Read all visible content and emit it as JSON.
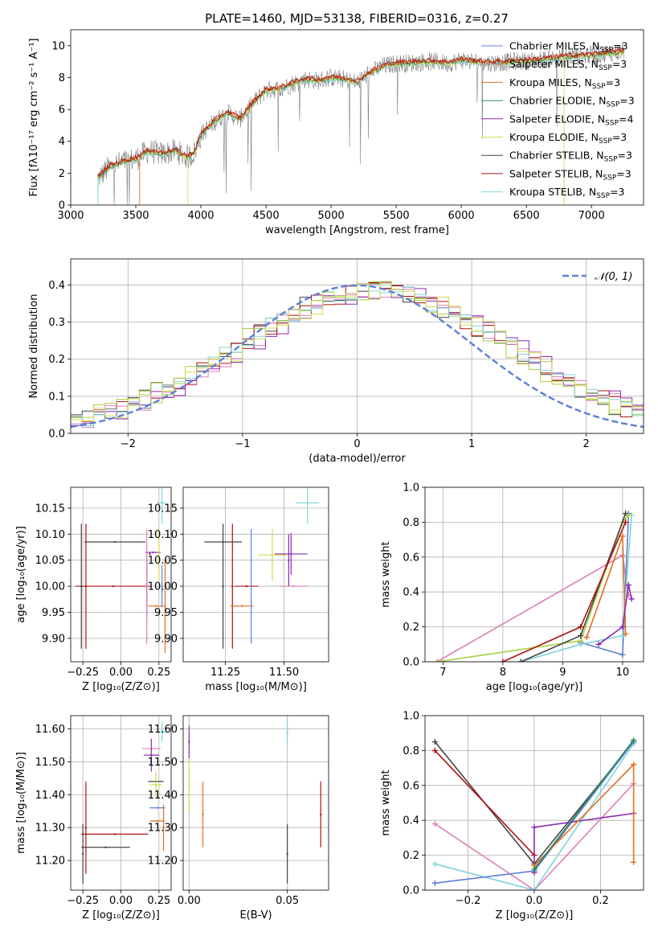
{
  "figure": {
    "title": "PLATE=1460, MJD=53138, FIBERID=0316, z=0.27"
  },
  "colors": {
    "chabrier_miles": "#5b7fd6",
    "salpeter_miles": "#e07fb6",
    "kroupa_miles": "#e07020",
    "chabrier_elodie": "#2e8b57",
    "salpeter_elodie": "#8b2bb0",
    "kroupa_elodie": "#d4dc50",
    "chabrier_stelib": "#444444",
    "salpeter_stelib": "#b01010",
    "kroupa_stelib": "#7fd4dc",
    "data": "#808080",
    "gaussian": "#5b7fd6",
    "lime": "#a8d040"
  },
  "chart_data": [
    {
      "id": "spectrum",
      "type": "line",
      "xlabel": "wavelength [Angstrom, rest frame]",
      "ylabel": "Flux [fλ10⁻¹⁷ erg cm⁻² s⁻¹ A⁻¹]",
      "xlim": [
        3000,
        7400
      ],
      "ylim": [
        0,
        11
      ],
      "xticks": [
        3000,
        3500,
        4000,
        4500,
        5000,
        5500,
        6000,
        6500,
        7000
      ],
      "yticks": [
        0,
        2,
        4,
        6,
        8,
        10
      ],
      "grid": false,
      "legend_position": "top-right",
      "legend": [
        {
          "label": "Chabrier MILES, N",
          "sub": "SSP",
          "tail": "=3",
          "color": "chabrier_miles"
        },
        {
          "label": "Salpeter MILES, N",
          "sub": "SSP",
          "tail": "=3",
          "color": "salpeter_miles"
        },
        {
          "label": "Kroupa MILES, N",
          "sub": "SSP",
          "tail": "=3",
          "color": "kroupa_miles"
        },
        {
          "label": "Chabrier ELODIE, N",
          "sub": "SSP",
          "tail": "=3",
          "color": "chabrier_elodie"
        },
        {
          "label": "Salpeter ELODIE, N",
          "sub": "SSP",
          "tail": "=4",
          "color": "salpeter_elodie"
        },
        {
          "label": "Kroupa ELODIE, N",
          "sub": "SSP",
          "tail": "=3",
          "color": "kroupa_elodie"
        },
        {
          "label": "Chabrier STELIB, N",
          "sub": "SSP",
          "tail": "=3",
          "color": "chabrier_stelib"
        },
        {
          "label": "Salpeter STELIB, N",
          "sub": "SSP",
          "tail": "=3",
          "color": "salpeter_stelib"
        },
        {
          "label": "Kroupa STELIB, N",
          "sub": "SSP",
          "tail": "=3",
          "color": "kroupa_stelib"
        }
      ],
      "continuum": {
        "x": [
          3210,
          3300,
          3400,
          3500,
          3600,
          3700,
          3800,
          3900,
          3950,
          4000,
          4100,
          4200,
          4300,
          4400,
          4500,
          4600,
          4700,
          4800,
          4900,
          5000,
          5100,
          5200,
          5300,
          5400,
          5500,
          5600,
          5700,
          5800,
          5900,
          6000,
          6200,
          6400,
          6600,
          6800,
          7000,
          7200
        ],
        "y": [
          1.7,
          2.4,
          2.7,
          2.9,
          3.4,
          3.2,
          3.4,
          3.0,
          3.3,
          4.4,
          5.2,
          5.8,
          5.4,
          6.4,
          7.2,
          7.3,
          7.6,
          7.9,
          7.8,
          8.0,
          7.9,
          7.7,
          8.3,
          8.7,
          8.9,
          8.9,
          9.0,
          9.0,
          8.9,
          9.1,
          8.9,
          9.0,
          9.1,
          9.3,
          9.4,
          9.6
        ]
      }
    },
    {
      "id": "residuals",
      "type": "line",
      "xlabel": "(data-model)/error",
      "ylabel": "Normed distribution",
      "xlim": [
        -2.5,
        2.5
      ],
      "ylim": [
        0,
        0.47
      ],
      "xticks": [
        -2,
        -1,
        0,
        1,
        2
      ],
      "yticks": [
        0.0,
        0.1,
        0.2,
        0.3,
        0.4
      ],
      "grid": true,
      "legend_position": "top-right",
      "legend_label": "𝒩(0, 1)",
      "gaussian": {
        "mean": 0,
        "sigma": 1
      }
    },
    {
      "id": "age_vs_Z",
      "type": "scatter",
      "xlabel": "Z [log₁₀(Z/Z⊙)]",
      "ylabel": "age  [log₁₀(age/yr)]",
      "xlim": [
        -0.33,
        0.33
      ],
      "ylim": [
        9.855,
        10.19
      ],
      "xticks": [
        -0.25,
        0.0,
        0.25
      ],
      "xticklabels": [
        "−0.25",
        "0.00",
        "0.25"
      ],
      "yticks": [
        9.9,
        9.95,
        10.0,
        10.05,
        10.1,
        10.15
      ],
      "grid": true,
      "points": [
        {
          "series": "kroupa_stelib",
          "x": 0.27,
          "y": 10.16,
          "xerr": 0.03,
          "yerr": 0.04
        },
        {
          "series": "chabrier_stelib",
          "x": -0.04,
          "y": 10.085,
          "xerr": 0.2,
          "yerr": 0.0
        },
        {
          "series": "salpeter_elodie",
          "x": 0.21,
          "y": 10.065,
          "xerr": 0.05,
          "yerr": 0.0
        },
        {
          "series": "chabrier_stelib",
          "x": 0.19,
          "y": 10.062,
          "xerr": 0.0,
          "yerr": 0.0
        },
        {
          "series": "salpeter_stelib",
          "x": -0.05,
          "y": 10.0,
          "xerr": 0.25,
          "yerr": 0.0
        },
        {
          "series": "chabrier_stelib",
          "x": -0.26,
          "y": 10.0,
          "xerr": 0.0,
          "yerr": 0.12
        },
        {
          "series": "salpeter_stelib",
          "x": -0.23,
          "y": 10.0,
          "xerr": 0.0,
          "yerr": 0.12
        },
        {
          "series": "salpeter_elodie",
          "x": 0.17,
          "y": 10.0,
          "xerr": 0.0,
          "yerr": 0.06
        },
        {
          "series": "salpeter_miles",
          "x": 0.17,
          "y": 10.0,
          "xerr": 0.0,
          "yerr": 0.11
        },
        {
          "series": "kroupa_miles",
          "x": 0.23,
          "y": 9.962,
          "xerr": 0.05,
          "yerr": 0.0
        },
        {
          "series": "kroupa_elodie",
          "x": 0.25,
          "y": 10.06,
          "xerr": 0.0,
          "yerr": 0.05
        },
        {
          "series": "chabrier_miles",
          "x": 0.27,
          "y": 10.0,
          "xerr": 0.0,
          "yerr": 0.04
        },
        {
          "series": "kroupa_miles",
          "x": 0.29,
          "y": 9.962,
          "xerr": 0.0,
          "yerr": 0.09
        }
      ]
    },
    {
      "id": "age_vs_mass",
      "type": "scatter",
      "xlabel": "mass [log₁₀(M/M⊙)]",
      "xlim": [
        11.07,
        11.69
      ],
      "ylim": [
        9.855,
        10.19
      ],
      "xticks": [
        11.25,
        11.5
      ],
      "xticklabels": [
        "11.25",
        "11.50"
      ],
      "yticks": [
        9.9,
        9.95,
        10.0,
        10.05,
        10.1,
        10.15
      ],
      "grid": true,
      "points": [
        {
          "series": "kroupa_stelib",
          "x": 11.6,
          "y": 10.16,
          "xerr": 0.05,
          "yerr": 0.04
        },
        {
          "series": "chabrier_stelib",
          "x": 11.24,
          "y": 10.085,
          "xerr": 0.08,
          "yerr": 0.0
        },
        {
          "series": "chabrier_stelib",
          "x": 11.24,
          "y": 10.0,
          "xerr": 0.0,
          "yerr": 0.12
        },
        {
          "series": "salpeter_stelib",
          "x": 11.28,
          "y": 10.0,
          "xerr": 0.0,
          "yerr": 0.12
        },
        {
          "series": "salpeter_stelib",
          "x": 11.34,
          "y": 10.0,
          "xerr": 0.05,
          "yerr": 0.0
        },
        {
          "series": "kroupa_miles",
          "x": 11.32,
          "y": 9.962,
          "xerr": 0.05,
          "yerr": 0.0
        },
        {
          "series": "chabrier_miles",
          "x": 11.36,
          "y": 10.0,
          "xerr": 0.0,
          "yerr": 0.11
        },
        {
          "series": "kroupa_elodie",
          "x": 11.45,
          "y": 10.06,
          "xerr": 0.06,
          "yerr": 0.05
        },
        {
          "series": "salpeter_elodie",
          "x": 11.53,
          "y": 10.062,
          "xerr": 0.07,
          "yerr": 0.04
        },
        {
          "series": "salpeter_miles",
          "x": 11.54,
          "y": 10.0,
          "xerr": 0.06,
          "yerr": 0.0
        },
        {
          "series": "salpeter_elodie",
          "x": 11.52,
          "y": 10.05,
          "xerr": 0.0,
          "yerr": 0.05
        }
      ]
    },
    {
      "id": "massweight_vs_age",
      "type": "line",
      "xlabel": "age  [log₁₀(age/yr)]",
      "ylabel": "mass weight",
      "xlim": [
        6.7,
        10.35
      ],
      "ylim": [
        0,
        1.0
      ],
      "xticks": [
        7,
        8,
        9,
        10
      ],
      "yticks": [
        0.0,
        0.2,
        0.4,
        0.6,
        0.8,
        1.0
      ],
      "grid": true,
      "series": [
        {
          "color": "salpeter_miles",
          "x": [
            6.9,
            10.0,
            10.1
          ],
          "y": [
            0.0,
            0.61,
            0.38
          ]
        },
        {
          "color": "chabrier_miles",
          "x": [
            9.3,
            10.0,
            10.1
          ],
          "y": [
            0.11,
            0.04,
            0.85
          ]
        },
        {
          "color": "kroupa_stelib",
          "x": [
            8.3,
            9.3,
            10.0,
            10.15
          ],
          "y": [
            0.0,
            0.1,
            0.15,
            0.84
          ]
        },
        {
          "color": "lime",
          "x": [
            6.9,
            9.3,
            10.0,
            10.1
          ],
          "y": [
            0.0,
            0.12,
            0.8,
            0.84
          ]
        },
        {
          "color": "kroupa_miles",
          "x": [
            9.4,
            10.0,
            10.05
          ],
          "y": [
            0.14,
            0.72,
            0.16
          ]
        },
        {
          "color": "salpeter_elodie",
          "x": [
            9.6,
            10.0,
            10.1,
            10.15
          ],
          "y": [
            0.1,
            0.2,
            0.44,
            0.36
          ]
        },
        {
          "color": "chabrier_stelib",
          "x": [
            8.3,
            9.3,
            10.05
          ],
          "y": [
            0.0,
            0.15,
            0.85
          ]
        },
        {
          "color": "salpeter_stelib",
          "x": [
            8.0,
            9.3,
            10.05
          ],
          "y": [
            0.0,
            0.2,
            0.8
          ]
        }
      ]
    },
    {
      "id": "mass_vs_Z",
      "type": "scatter",
      "xlabel": "Z [log₁₀(Z/Z⊙)]",
      "ylabel": "mass [log₁₀(M/M⊙)]",
      "xlim": [
        -0.33,
        0.33
      ],
      "ylim": [
        11.11,
        11.64
      ],
      "xticks": [
        -0.25,
        0.0,
        0.25
      ],
      "xticklabels": [
        "−0.25",
        "0.00",
        "0.25"
      ],
      "yticks": [
        11.2,
        11.3,
        11.4,
        11.5,
        11.6
      ],
      "grid": true,
      "points": [
        {
          "series": "kroupa_stelib",
          "x": 0.27,
          "y": 11.59,
          "xerr": 0.03,
          "yerr": 0.03
        },
        {
          "series": "salpeter_miles",
          "x": 0.2,
          "y": 11.54,
          "xerr": 0.06,
          "yerr": 0.0
        },
        {
          "series": "salpeter_elodie",
          "x": 0.2,
          "y": 11.52,
          "xerr": 0.05,
          "yerr": 0.05
        },
        {
          "series": "chabrier_stelib",
          "x": 0.23,
          "y": 11.44,
          "xerr": 0.05,
          "yerr": 0.0
        },
        {
          "series": "kroupa_elodie",
          "x": 0.23,
          "y": 11.43,
          "xerr": 0.04,
          "yerr": 0.04
        },
        {
          "series": "chabrier_miles",
          "x": 0.24,
          "y": 11.36,
          "xerr": 0.05,
          "yerr": 0.0
        },
        {
          "series": "kroupa_miles",
          "x": 0.24,
          "y": 11.32,
          "xerr": 0.05,
          "yerr": 0.0
        },
        {
          "series": "kroupa_miles",
          "x": 0.28,
          "y": 11.3,
          "xerr": 0.0,
          "yerr": 0.07
        },
        {
          "series": "salpeter_stelib",
          "x": -0.04,
          "y": 11.28,
          "xerr": 0.22,
          "yerr": 0.0
        },
        {
          "series": "salpeter_stelib",
          "x": -0.23,
          "y": 11.3,
          "xerr": 0.0,
          "yerr": 0.14
        },
        {
          "series": "chabrier_stelib",
          "x": -0.1,
          "y": 11.24,
          "xerr": 0.16,
          "yerr": 0.0
        },
        {
          "series": "chabrier_stelib",
          "x": -0.25,
          "y": 11.22,
          "xerr": 0.0,
          "yerr": 0.09
        }
      ]
    },
    {
      "id": "mass_vs_ebv",
      "type": "scatter",
      "xlabel": "E(B-V)",
      "xlim": [
        -0.003,
        0.071
      ],
      "ylim": [
        11.11,
        11.64
      ],
      "xticks": [
        0.0,
        0.05
      ],
      "xticklabels": [
        "0.00",
        "0.05"
      ],
      "yticks": [
        11.2,
        11.3,
        11.4,
        11.5,
        11.6
      ],
      "grid": true,
      "points": [
        {
          "series": "salpeter_elodie",
          "x": 0.0,
          "y": 11.56,
          "xerr": 0.0,
          "yerr": 0.05
        },
        {
          "series": "kroupa_elodie",
          "x": 0.0,
          "y": 11.43,
          "xerr": 0.0,
          "yerr": 0.08
        },
        {
          "series": "kroupa_miles",
          "x": 0.007,
          "y": 11.34,
          "xerr": 0.0,
          "yerr": 0.1
        },
        {
          "series": "kroupa_stelib",
          "x": 0.05,
          "y": 11.59,
          "xerr": 0.0,
          "yerr": 0.04
        },
        {
          "series": "chabrier_stelib",
          "x": 0.05,
          "y": 11.22,
          "xerr": 0.0,
          "yerr": 0.09
        },
        {
          "series": "salpeter_stelib",
          "x": 0.067,
          "y": 11.34,
          "xerr": 0.0,
          "yerr": 0.1
        }
      ]
    },
    {
      "id": "massweight_vs_Z",
      "type": "line",
      "xlabel": "Z [log₁₀(Z/Z⊙)]",
      "ylabel": "mass weight",
      "xlim": [
        -0.33,
        0.33
      ],
      "ylim": [
        0,
        1.0
      ],
      "xticks": [
        -0.2,
        0.0,
        0.2
      ],
      "xticklabels": [
        "−0.2",
        "0.0",
        "0.2"
      ],
      "yticks": [
        0.0,
        0.2,
        0.4,
        0.6,
        0.8,
        1.0
      ],
      "grid": true,
      "series": [
        {
          "color": "chabrier_stelib",
          "x": [
            -0.3,
            0.0,
            0.3
          ],
          "y": [
            0.85,
            0.15,
            0.85
          ]
        },
        {
          "color": "salpeter_stelib",
          "x": [
            -0.3,
            0.0
          ],
          "y": [
            0.8,
            0.2
          ]
        },
        {
          "color": "salpeter_miles",
          "x": [
            -0.3,
            0.0,
            0.3
          ],
          "y": [
            0.38,
            0.0,
            0.61
          ]
        },
        {
          "color": "kroupa_stelib",
          "x": [
            -0.3,
            0.0,
            0.3
          ],
          "y": [
            0.15,
            0.0,
            0.84
          ]
        },
        {
          "color": "chabrier_miles",
          "x": [
            -0.3,
            0.0,
            0.3
          ],
          "y": [
            0.04,
            0.11,
            0.85
          ]
        },
        {
          "color": "salpeter_elodie",
          "x": [
            0.0,
            0.0,
            0.3
          ],
          "y": [
            0.1,
            0.36,
            0.44
          ]
        },
        {
          "color": "kroupa_miles",
          "x": [
            0.0,
            0.3,
            0.3
          ],
          "y": [
            0.14,
            0.72,
            0.16
          ]
        },
        {
          "color": "chabrier_elodie",
          "x": [
            0.0,
            0.3
          ],
          "y": [
            0.12,
            0.86
          ]
        }
      ]
    }
  ]
}
